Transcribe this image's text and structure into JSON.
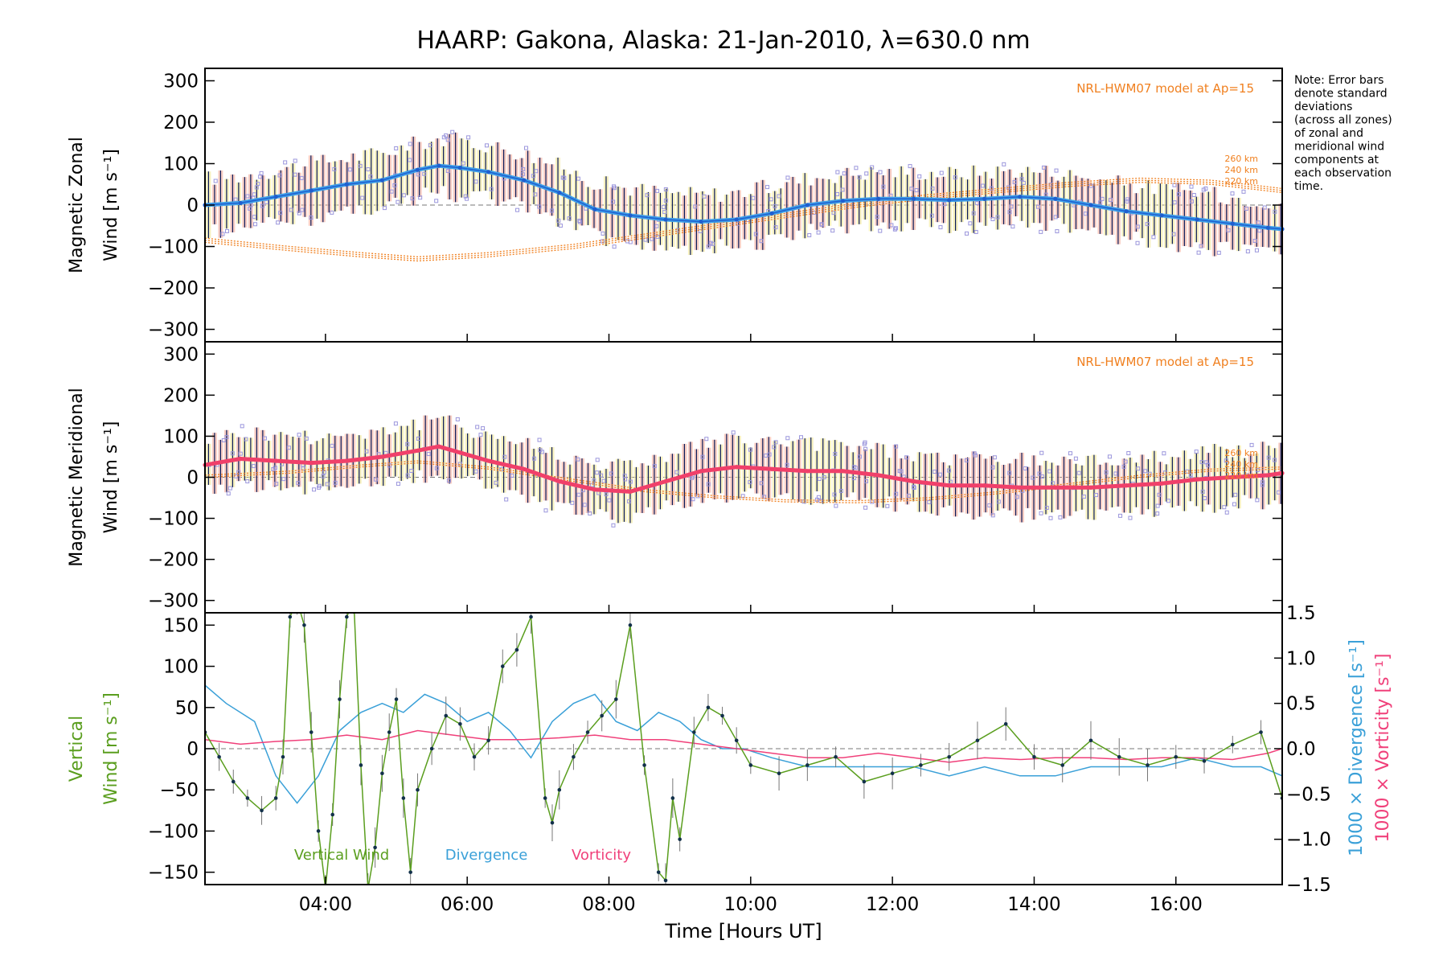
{
  "title": "HAARP: Gakona,  Alaska: 21-Jan-2010, λ=630.0 nm",
  "note": [
    "Note: Error bars",
    "denote standard",
    "deviations",
    "(across all zones)",
    "of zonal and",
    "meridional wind",
    "components at",
    "each observation",
    "time."
  ],
  "colors": {
    "zonal": "#1f5fd0",
    "zonal_light": "#3fa0e8",
    "meridional": "#f0406a",
    "model": "#f08020",
    "vertical": "#5a9e1e",
    "divergence": "#3aa0d8",
    "vorticity": "#f0407a",
    "scatter": "#9b96dc",
    "errbar_fill_yellow": "#f2e9a2",
    "errbar_fill_pink": "#f4b8aa",
    "errbar_line": "#0a1a5a"
  },
  "chart_data": [
    {
      "type": "line",
      "panel": "zonal",
      "ylabel_line1": "Magnetic Zonal",
      "ylabel_line2": "Wind [m s⁻¹]",
      "ylim": [
        -330,
        330
      ],
      "yticks": [
        300,
        200,
        100,
        0,
        -100,
        -200,
        -300
      ],
      "xlim": [
        2.3,
        17.5
      ],
      "model_label": "NRL-HWM07 model at Ap=15",
      "model_levels": [
        "260 km",
        "240 km",
        "220 km"
      ],
      "series": [
        {
          "name": "Zonal wind",
          "x": [
            2.3,
            2.8,
            3.3,
            3.8,
            4.3,
            4.8,
            5.3,
            5.6,
            5.9,
            6.3,
            6.8,
            7.3,
            7.8,
            8.3,
            8.8,
            9.3,
            9.8,
            10.3,
            10.8,
            11.3,
            11.8,
            12.3,
            12.8,
            13.3,
            13.8,
            14.3,
            14.8,
            15.3,
            15.8,
            16.3,
            16.8,
            17.3,
            17.5
          ],
          "y": [
            0,
            5,
            20,
            35,
            50,
            60,
            85,
            95,
            90,
            80,
            60,
            30,
            -10,
            -25,
            -35,
            -40,
            -35,
            -20,
            0,
            10,
            15,
            15,
            12,
            15,
            20,
            15,
            0,
            -15,
            -25,
            -35,
            -45,
            -55,
            -58
          ]
        }
      ],
      "model_series": [
        {
          "x": [
            2.3,
            3.5,
            4.5,
            5.3,
            6.3,
            7.5,
            8.5,
            9.5,
            10.5,
            11.5,
            12.5,
            13.5,
            14.5,
            15.5,
            16.5,
            17.5
          ],
          "y": [
            -90,
            -110,
            -125,
            -135,
            -125,
            -105,
            -80,
            -55,
            -30,
            -5,
            15,
            30,
            45,
            55,
            50,
            30
          ]
        },
        {
          "x": [
            2.3,
            3.5,
            4.5,
            5.3,
            6.3,
            7.5,
            8.5,
            9.5,
            10.5,
            11.5,
            12.5,
            13.5,
            14.5,
            15.5,
            16.5,
            17.5
          ],
          "y": [
            -85,
            -105,
            -120,
            -130,
            -120,
            -100,
            -75,
            -50,
            -25,
            0,
            20,
            35,
            50,
            60,
            55,
            35
          ]
        },
        {
          "x": [
            2.3,
            3.5,
            4.5,
            5.3,
            6.3,
            7.5,
            8.5,
            9.5,
            10.5,
            11.5,
            12.5,
            13.5,
            14.5,
            15.5,
            16.5,
            17.5
          ],
          "y": [
            -80,
            -100,
            -115,
            -125,
            -115,
            -95,
            -70,
            -45,
            -20,
            5,
            25,
            40,
            55,
            65,
            60,
            40
          ]
        }
      ]
    },
    {
      "type": "line",
      "panel": "meridional",
      "ylabel_line1": "Magnetic Meridional",
      "ylabel_line2": "Wind [m s⁻¹]",
      "ylim": [
        -330,
        330
      ],
      "yticks": [
        300,
        200,
        100,
        0,
        -100,
        -200,
        -300
      ],
      "xlim": [
        2.3,
        17.5
      ],
      "model_label": "NRL-HWM07 model at Ap=15",
      "model_levels": [
        "260 km",
        "240 km",
        "220 km"
      ],
      "series": [
        {
          "name": "Meridional wind",
          "x": [
            2.3,
            2.8,
            3.3,
            3.8,
            4.3,
            4.8,
            5.3,
            5.6,
            5.9,
            6.3,
            6.8,
            7.3,
            7.8,
            8.3,
            8.8,
            9.3,
            9.8,
            10.3,
            10.8,
            11.3,
            11.8,
            12.3,
            12.8,
            13.3,
            13.8,
            14.3,
            14.8,
            15.3,
            15.8,
            16.3,
            16.8,
            17.3,
            17.5
          ],
          "y": [
            30,
            45,
            40,
            35,
            40,
            50,
            65,
            75,
            60,
            40,
            20,
            -10,
            -30,
            -35,
            -10,
            15,
            25,
            20,
            15,
            15,
            5,
            -10,
            -20,
            -20,
            -25,
            -25,
            -25,
            -20,
            -15,
            -5,
            0,
            5,
            10
          ]
        }
      ],
      "model_series": [
        {
          "x": [
            2.3,
            3.5,
            4.5,
            5.3,
            6.3,
            7.5,
            8.5,
            9.5,
            10.5,
            11.5,
            12.5,
            13.5,
            14.5,
            15.5,
            16.5,
            17.5
          ],
          "y": [
            0,
            10,
            25,
            35,
            20,
            -10,
            -35,
            -50,
            -60,
            -62,
            -55,
            -40,
            -20,
            0,
            15,
            20
          ]
        },
        {
          "x": [
            2.3,
            3.5,
            4.5,
            5.3,
            6.3,
            7.5,
            8.5,
            9.5,
            10.5,
            11.5,
            12.5,
            13.5,
            14.5,
            15.5,
            16.5,
            17.5
          ],
          "y": [
            5,
            15,
            30,
            40,
            25,
            -5,
            -30,
            -45,
            -55,
            -57,
            -50,
            -35,
            -15,
            5,
            20,
            25
          ]
        }
      ]
    },
    {
      "type": "line",
      "panel": "vertical",
      "ylabel_line1": "Vertical",
      "ylabel_line2": "Wind [m s⁻¹]",
      "ylabel_right1": "1000 × Divergence [s⁻¹]",
      "ylabel_right2": "1000 × Vorticity [s⁻¹]",
      "ylim": [
        -165,
        165
      ],
      "yticks": [
        150,
        100,
        50,
        0,
        -50,
        -100,
        -150
      ],
      "y2lim": [
        -1.5,
        1.5
      ],
      "y2ticks": [
        "1.5",
        "1.0",
        "0.5",
        "0.0",
        "−0.5",
        "−1.0",
        "−1.5"
      ],
      "xlim": [
        2.3,
        17.5
      ],
      "xticks": [
        "04:00",
        "06:00",
        "08:00",
        "10:00",
        "12:00",
        "14:00",
        "16:00"
      ],
      "xtick_values": [
        4,
        6,
        8,
        10,
        12,
        14,
        16
      ],
      "xlabel": "Time [Hours UT]",
      "legend": [
        "Vertical Wind",
        "Divergence",
        "Vorticity"
      ],
      "series": [
        {
          "name": "Vertical Wind",
          "x": [
            2.3,
            2.5,
            2.7,
            2.9,
            3.1,
            3.3,
            3.4,
            3.5,
            3.6,
            3.7,
            3.8,
            3.9,
            4.0,
            4.1,
            4.2,
            4.3,
            4.4,
            4.5,
            4.6,
            4.7,
            4.8,
            4.9,
            5.0,
            5.1,
            5.2,
            5.3,
            5.5,
            5.7,
            5.9,
            6.1,
            6.3,
            6.5,
            6.7,
            6.9,
            7.1,
            7.2,
            7.3,
            7.5,
            7.7,
            7.9,
            8.1,
            8.3,
            8.5,
            8.7,
            8.8,
            8.9,
            9.0,
            9.2,
            9.4,
            9.6,
            9.8,
            10.0,
            10.4,
            10.8,
            11.2,
            11.6,
            12.0,
            12.4,
            12.8,
            13.2,
            13.6,
            14.0,
            14.4,
            14.8,
            15.2,
            15.6,
            16.0,
            16.4,
            16.8,
            17.2,
            17.5
          ],
          "y": [
            20,
            -10,
            -40,
            -60,
            -75,
            -60,
            -10,
            160,
            180,
            150,
            20,
            -100,
            -170,
            -80,
            60,
            160,
            180,
            -20,
            -170,
            -120,
            -30,
            20,
            60,
            -60,
            -150,
            -50,
            0,
            40,
            30,
            -10,
            10,
            100,
            120,
            160,
            -60,
            -90,
            -50,
            -10,
            20,
            40,
            60,
            150,
            -20,
            -150,
            -160,
            -60,
            -110,
            20,
            50,
            40,
            10,
            -20,
            -30,
            -20,
            -10,
            -40,
            -30,
            -20,
            -10,
            10,
            30,
            -10,
            -20,
            10,
            -10,
            -20,
            -10,
            -15,
            5,
            20,
            -60
          ]
        },
        {
          "name": "Divergence",
          "x": [
            2.3,
            2.6,
            3.0,
            3.3,
            3.6,
            3.9,
            4.2,
            4.5,
            4.8,
            5.1,
            5.4,
            5.7,
            6.0,
            6.3,
            6.6,
            6.9,
            7.2,
            7.5,
            7.8,
            8.1,
            8.4,
            8.7,
            9.0,
            9.3,
            9.6,
            9.9,
            10.3,
            10.8,
            11.3,
            11.8,
            12.3,
            12.8,
            13.3,
            13.8,
            14.3,
            14.8,
            15.3,
            15.8,
            16.3,
            16.8,
            17.2,
            17.5
          ],
          "y": [
            0.7,
            0.5,
            0.3,
            -0.3,
            -0.6,
            -0.3,
            0.2,
            0.4,
            0.5,
            0.4,
            0.6,
            0.5,
            0.3,
            0.4,
            0.2,
            -0.1,
            0.3,
            0.5,
            0.6,
            0.3,
            0.2,
            0.4,
            0.3,
            0.1,
            0.0,
            0.0,
            -0.1,
            -0.2,
            -0.2,
            -0.2,
            -0.2,
            -0.3,
            -0.2,
            -0.3,
            -0.3,
            -0.2,
            -0.2,
            -0.2,
            -0.1,
            -0.2,
            -0.2,
            -0.3
          ]
        },
        {
          "name": "Vorticity",
          "x": [
            2.3,
            2.8,
            3.3,
            3.8,
            4.3,
            4.8,
            5.3,
            5.8,
            6.3,
            6.8,
            7.3,
            7.8,
            8.3,
            8.8,
            9.3,
            9.8,
            10.3,
            10.8,
            11.3,
            11.8,
            12.3,
            12.8,
            13.3,
            13.8,
            14.3,
            14.8,
            15.3,
            15.8,
            16.3,
            16.8,
            17.3,
            17.5
          ],
          "y": [
            0.1,
            0.05,
            0.08,
            0.1,
            0.15,
            0.1,
            0.2,
            0.15,
            0.1,
            0.1,
            0.12,
            0.15,
            0.1,
            0.1,
            0.05,
            0.0,
            -0.05,
            -0.1,
            -0.1,
            -0.05,
            -0.1,
            -0.15,
            -0.1,
            -0.12,
            -0.1,
            -0.1,
            -0.12,
            -0.1,
            -0.1,
            -0.12,
            -0.05,
            0.0
          ]
        }
      ]
    }
  ]
}
